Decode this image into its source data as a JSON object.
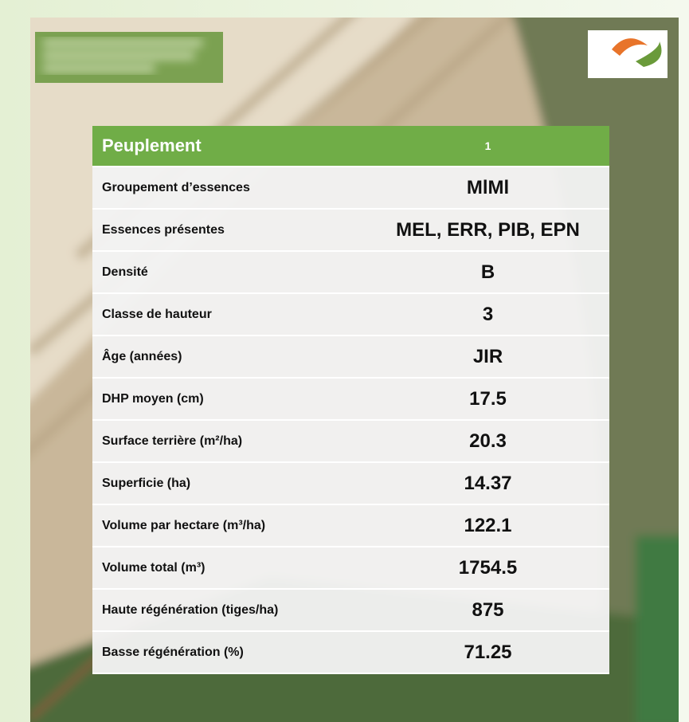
{
  "table": {
    "header": [
      "Peuplement",
      "1"
    ],
    "rows": [
      [
        "Groupement d’essences",
        "MlMl"
      ],
      [
        "Essences présentes",
        "MEL, ERR, PIB, EPN"
      ],
      [
        "Densité",
        "B"
      ],
      [
        "Classe de hauteur",
        "3"
      ],
      [
        "Âge (années)",
        "JIR"
      ],
      [
        "DHP moyen (cm)",
        "17.5"
      ],
      [
        "Surface terrière (m²/ha)",
        "20.3"
      ],
      [
        "Superficie (ha)",
        "14.37"
      ],
      [
        "Volume par hectare (m³/ha)",
        "122.1"
      ],
      [
        "Volume total (m³)",
        "1754.5"
      ],
      [
        "Haute régénération (tiges/ha)",
        "875"
      ],
      [
        "Basse régénération (%)",
        "71.25"
      ]
    ]
  }
}
